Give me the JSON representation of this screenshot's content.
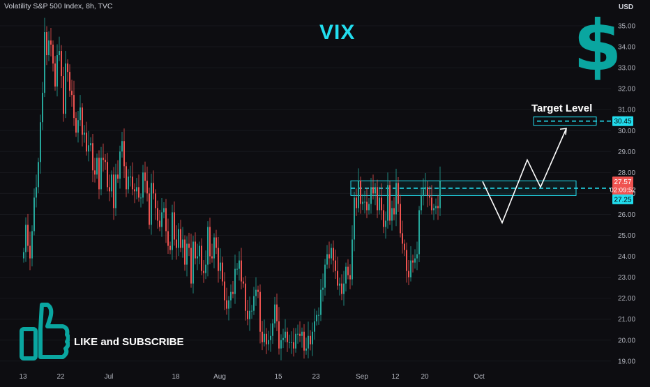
{
  "header": {
    "symbol_line": "Volatility S&P 500 Index, 8h, TVC",
    "currency": "USD"
  },
  "overlay": {
    "title": "VIX",
    "dollar_glyph": "$",
    "target_label": "Target Level",
    "cta_text": "LIKE and SUBSCRIBE",
    "thumb_icon": "thumbs-up-icon"
  },
  "colors": {
    "up": "#26a69a",
    "down": "#ef5350",
    "accent": "#22ddee",
    "dollar": "#0aa6a0"
  },
  "chart_data": {
    "type": "candlestick",
    "title": "Volatility S&P 500 Index, 8h, TVC",
    "ylim": [
      18.7,
      35.5
    ],
    "y_ticks": [
      35,
      34,
      33,
      32,
      31,
      30,
      29,
      28,
      27,
      26,
      25,
      24,
      23,
      22,
      21,
      20,
      19
    ],
    "y_tick_labels": [
      "35.00",
      "34.00",
      "33.00",
      "32.00",
      "31.00",
      "30.00",
      "29.00",
      "28.00",
      "27.00",
      "26.00",
      "25.00",
      "24.00",
      "23.00",
      "22.00",
      "21.00",
      "20.00",
      "19.00"
    ],
    "x_ticks": [
      {
        "label": "13",
        "idx": 0
      },
      {
        "label": "22",
        "idx": 18
      },
      {
        "label": "Jul",
        "idx": 41
      },
      {
        "label": "18",
        "idx": 73
      },
      {
        "label": "Aug",
        "idx": 94
      },
      {
        "label": "15",
        "idx": 122
      },
      {
        "label": "23",
        "idx": 140
      },
      {
        "label": "Sep",
        "idx": 162
      },
      {
        "label": "12",
        "idx": 178
      },
      {
        "label": "20",
        "idx": 192
      },
      {
        "label": "Oct",
        "idx": 218
      }
    ],
    "closes": [
      24.2,
      25.5,
      24.5,
      23.9,
      25.2,
      26.8,
      27.3,
      28.5,
      30.4,
      31.8,
      34.7,
      33.6,
      34.3,
      34.1,
      33.2,
      32.1,
      33.6,
      33.8,
      32.6,
      30.8,
      33.2,
      32.8,
      31.9,
      31.7,
      30.6,
      29.9,
      30.5,
      31.1,
      29.8,
      29.9,
      29.0,
      29.3,
      29.4,
      28.1,
      27.9,
      28.7,
      27.2,
      28.7,
      28.6,
      28.5,
      27.3,
      27.1,
      27.9,
      26.3,
      27.9,
      27.7,
      29.0,
      29.5,
      28.3,
      27.2,
      27.8,
      27.8,
      27.2,
      27.1,
      27.3,
      26.8,
      26.8,
      28.0,
      27.6,
      27.0,
      25.5,
      27.5,
      27.0,
      26.3,
      25.7,
      25.4,
      26.1,
      26.3,
      25.2,
      24.5,
      24.3,
      26.1,
      24.8,
      24.4,
      25.3,
      24.4,
      24.8,
      23.6,
      24.6,
      24.4,
      22.7,
      24.7,
      23.9,
      24.0,
      24.5,
      23.3,
      23.2,
      23.6,
      25.4,
      24.0,
      23.9,
      24.9,
      24.4,
      23.3,
      23.7,
      22.8,
      21.9,
      21.5,
      21.9,
      22.3,
      22.2,
      23.4,
      23.4,
      23.8,
      22.8,
      22.7,
      21.4,
      21.0,
      21.4,
      21.4,
      22.1,
      22.4,
      22.3,
      20.4,
      19.9,
      20.3,
      19.8,
      20.0,
      20.2,
      20.8,
      21.7,
      20.9,
      19.6,
      20.0,
      20.1,
      20.4,
      19.9,
      19.9,
      19.9,
      19.6,
      20.3,
      20.3,
      20.2,
      20.4,
      19.5,
      19.6,
      20.2,
      19.8,
      20.4,
      20.9,
      21.2,
      21.2,
      22.4,
      22.5,
      23.6,
      24.1,
      23.9,
      24.4,
      23.8,
      23.3,
      22.6,
      22.7,
      22.2,
      22.7,
      23.5,
      23.1,
      22.9,
      24.8,
      26.8,
      26.3,
      27.6,
      26.5,
      26.6,
      26.6,
      26.2,
      26.5,
      27.3,
      27.0,
      27.3,
      26.2,
      26.8,
      26.2,
      25.4,
      25.7,
      27.4,
      25.7,
      26.3,
      26.0,
      27.5,
      26.5,
      25.1,
      24.6,
      24.3,
      23.3,
      23.0,
      23.8,
      23.7,
      23.9,
      24.1,
      26.2,
      26.9,
      27.2,
      27.3,
      26.9,
      26.8,
      26.2,
      26.3,
      26.4,
      26.3,
      27.6
    ],
    "current_price": 27.57,
    "current_price_label": "27.57",
    "countdown": "02:09:52",
    "resistance_zone": {
      "low": 26.9,
      "high": 27.6,
      "label": "27.25",
      "value": 27.25,
      "start_idx": 158
    },
    "target_zone": {
      "low": 30.25,
      "high": 30.65,
      "label": "30.45",
      "value": 30.45,
      "title": "Target Level"
    },
    "projection": [
      {
        "x": "Sep 18",
        "y": 27.57
      },
      {
        "x": "Sep 23",
        "y": 25.6
      },
      {
        "x": "Sep 28",
        "y": 28.6
      },
      {
        "x": "Sep 30",
        "y": 27.3
      },
      {
        "x": "Oct 3",
        "y": 30.1
      }
    ]
  }
}
